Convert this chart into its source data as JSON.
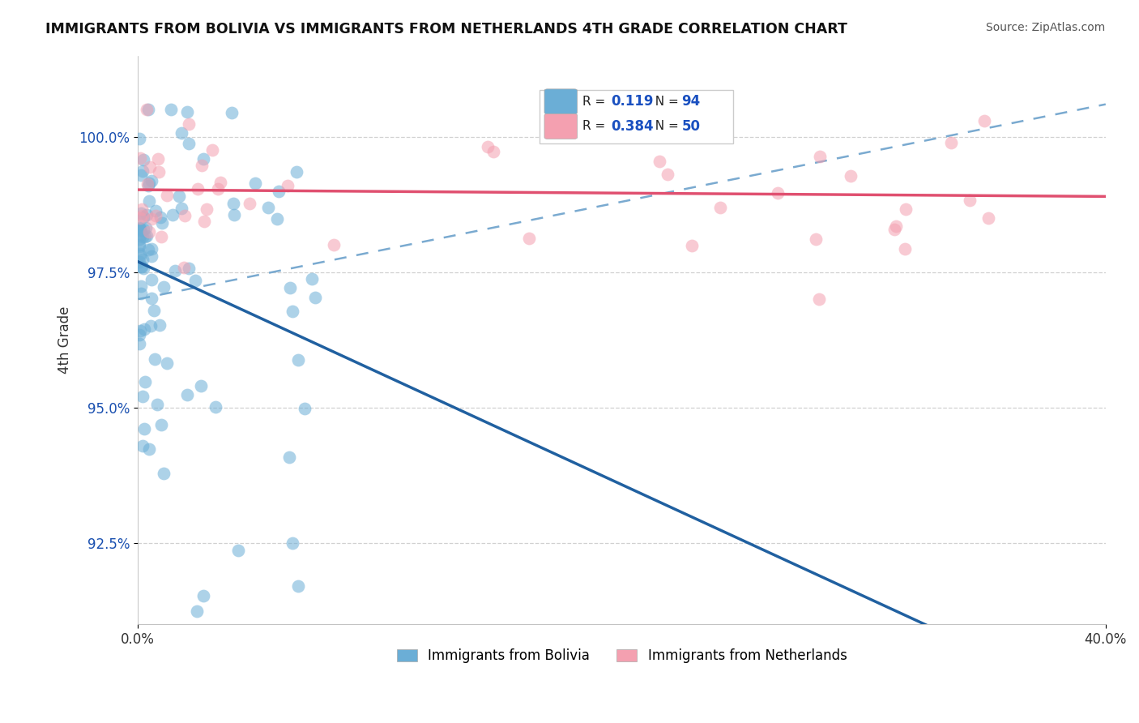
{
  "title": "IMMIGRANTS FROM BOLIVIA VS IMMIGRANTS FROM NETHERLANDS 4TH GRADE CORRELATION CHART",
  "source": "Source: ZipAtlas.com",
  "xlabel_bolivia": "Immigrants from Bolivia",
  "xlabel_netherlands": "Immigrants from Netherlands",
  "ylabel": "4th Grade",
  "xlim": [
    0.0,
    40.0
  ],
  "ylim": [
    91.0,
    101.5
  ],
  "yticks": [
    92.5,
    95.0,
    97.5,
    100.0
  ],
  "ytick_labels": [
    "92.5%",
    "95.0%",
    "97.5%",
    "100.0%"
  ],
  "xtick_labels": [
    "0.0%",
    "40.0%"
  ],
  "bolivia_color": "#6baed6",
  "netherlands_color": "#f4a0b0",
  "bolivia_line_color": "#2060a0",
  "netherlands_line_color": "#e05070",
  "dash_line_color": "#7aaad0",
  "bolivia_R": 0.119,
  "bolivia_N": 94,
  "netherlands_R": 0.384,
  "netherlands_N": 50
}
